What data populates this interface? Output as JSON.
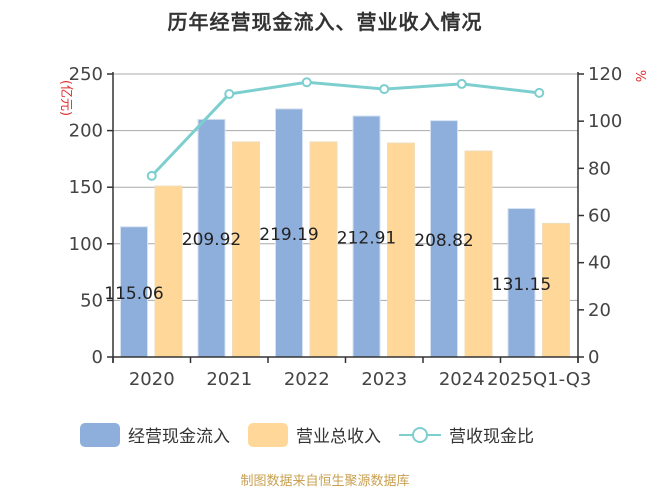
{
  "title": "历年经营现金流入、营业收入情况",
  "left_axis_unit": "(亿元)",
  "right_axis_unit": "%",
  "legend": [
    {
      "label": "经营现金流入",
      "type": "bar",
      "color": "#8eaedb"
    },
    {
      "label": "营业总收入",
      "type": "bar",
      "color": "#ffd899"
    },
    {
      "label": "营收现金比",
      "type": "line",
      "color": "#7dcfcf"
    }
  ],
  "footer": "制图数据来自恒生聚源数据库",
  "chart_data": {
    "type": "bar",
    "title": "历年经营现金流入、营业收入情况",
    "categories": [
      "2020",
      "2021",
      "2022",
      "2023",
      "2024",
      "2025Q1-Q3"
    ],
    "series": [
      {
        "name": "经营现金流入",
        "type": "bar",
        "axis": "left",
        "color": "#8eaedb",
        "values": [
          115.06,
          209.92,
          219.19,
          212.91,
          208.82,
          131.15
        ],
        "labels": [
          "115.06",
          "209.92",
          "219.19",
          "212.91",
          "208.82",
          "131.15"
        ]
      },
      {
        "name": "营业总收入",
        "type": "bar",
        "axis": "left",
        "color": "#ffd899",
        "values": [
          151,
          190,
          190,
          189,
          182,
          118
        ]
      },
      {
        "name": "营收现金比",
        "type": "line",
        "axis": "right",
        "color": "#7dcfcf",
        "values": [
          76.8,
          111.5,
          116.5,
          113.6,
          115.8,
          112.0
        ]
      }
    ],
    "ylabel": "(亿元)",
    "y2label": "%",
    "ylim": [
      0,
      250
    ],
    "y2lim": [
      0,
      120
    ],
    "yticks": [
      0,
      50,
      100,
      150,
      200,
      250
    ],
    "y2ticks": [
      0,
      20,
      40,
      60,
      80,
      100,
      120
    ],
    "grid": true,
    "legend_position": "bottom"
  }
}
